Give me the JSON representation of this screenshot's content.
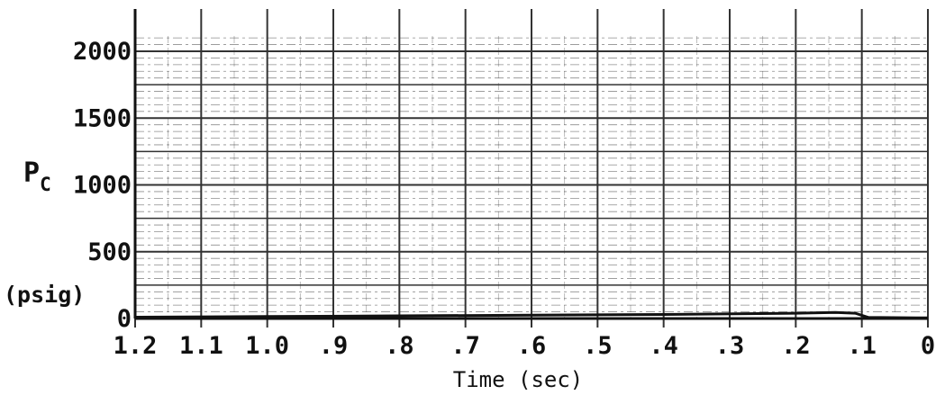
{
  "chart_data": {
    "type": "line",
    "xlabel": "Time (sec)",
    "ylabel": "P",
    "ylabel_subscript": "C",
    "yunit": "(psig)",
    "x_reversed": true,
    "xlim": [
      1.2,
      0
    ],
    "ylim": [
      0,
      2000
    ],
    "x_ticks": [
      1.2,
      1.1,
      1.0,
      0.9,
      0.8,
      0.7,
      0.6,
      0.5,
      0.4,
      0.3,
      0.2,
      0.1,
      0
    ],
    "x_tick_labels": [
      "1.2",
      "1.1",
      "1.0",
      ".9",
      ".8",
      ".7",
      ".6",
      ".5",
      ".4",
      ".3",
      ".2",
      ".1",
      "0"
    ],
    "y_ticks": [
      0,
      500,
      1000,
      1500,
      2000
    ],
    "y_tick_labels": [
      "0",
      "500",
      "1000",
      "1500",
      "2000"
    ],
    "grid": true,
    "series": [
      {
        "x": [
          1.2,
          1.0,
          0.8,
          0.6,
          0.4,
          0.2,
          0.14,
          0.11,
          0.09,
          0
        ],
        "y": [
          10,
          15,
          20,
          25,
          30,
          40,
          45,
          40,
          8,
          5
        ]
      }
    ],
    "colors": {
      "line": "#111111",
      "grid": "#333333",
      "background": "#ffffff"
    }
  }
}
